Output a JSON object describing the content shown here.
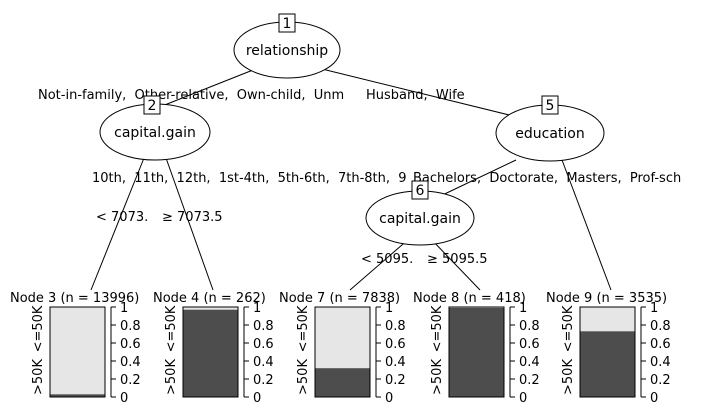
{
  "tree": {
    "inner_nodes": [
      {
        "id": "1",
        "label": "relationship"
      },
      {
        "id": "2",
        "label": "capital.gain"
      },
      {
        "id": "5",
        "label": "education"
      },
      {
        "id": "6",
        "label": "capital.gain"
      }
    ],
    "edge_labels": {
      "n1_left": "Not-in-family,  Other-relative,  Own-child,  Unm",
      "n1_right": "Husband,  Wife",
      "n2_left": "< 7073.",
      "n2_right": "≥ 7073.5",
      "n5_left": "10th,  11th,  12th,  1st-4th,  5th-6th,  7th-8th,  9",
      "n5_right": "Bachelors,  Doctorate,  Masters,  Prof-sch",
      "n6_left": "< 5095.",
      "n6_right": "≥ 5095.5"
    },
    "leaves": [
      {
        "title": "Node 3 (n = 13996)",
        "class_top": "<=50K",
        "class_bottom": ">50K",
        "dark_fraction": 0.03
      },
      {
        "title": "Node 4 (n = 262)",
        "class_top": "<=50K",
        "class_bottom": ">50K",
        "dark_fraction": 0.97
      },
      {
        "title": "Node 7 (n = 7838)",
        "class_top": "<=50K",
        "class_bottom": ">50K",
        "dark_fraction": 0.32
      },
      {
        "title": "Node 8 (n = 418)",
        "class_top": "<=50K",
        "class_bottom": ">50K",
        "dark_fraction": 0.99
      },
      {
        "title": "Node 9 (n = 3535)",
        "class_top": "<=50K",
        "class_bottom": ">50K",
        "dark_fraction": 0.73
      }
    ],
    "ticks": [
      "0",
      "0.2",
      "0.4",
      "0.6",
      "0.8",
      "1"
    ],
    "colors": {
      "dark": "#4d4d4d",
      "light": "#e6e6e6",
      "stroke": "#000000"
    }
  }
}
